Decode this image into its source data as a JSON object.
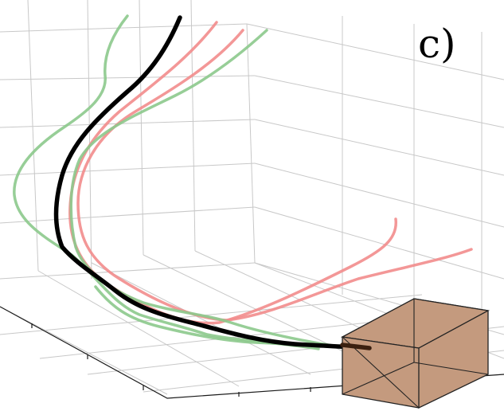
{
  "figure": {
    "panel_label": "c)"
  },
  "colors": {
    "reference_trajectory": "#000000",
    "red_trajectories": "#f28c8c",
    "green_trajectories": "#8cc98c",
    "target_box": "#c49a7e"
  }
}
